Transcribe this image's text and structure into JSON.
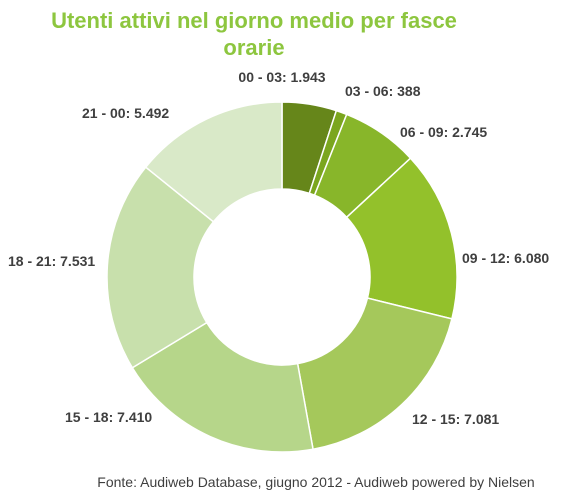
{
  "chart_data": {
    "type": "pie",
    "variant": "donut",
    "title_lines": [
      "Utenti attivi nel giorno medio  per fasce",
      "orarie"
    ],
    "categories": [
      "00 - 03",
      "03 - 06",
      "06 - 09",
      "09 - 12",
      "12 - 15",
      "15 - 18",
      "18 - 21",
      "21 - 00"
    ],
    "values": [
      1943,
      388,
      2745,
      6080,
      7081,
      7410,
      7531,
      5492
    ],
    "labels": [
      "00 - 03: 1.943",
      "03 - 06: 388",
      "06 - 09: 2.745",
      "09 - 12: 6.080",
      "12 - 15: 7.081",
      "15 - 18: 7.410",
      "18 - 21: 7.531",
      "21 - 00: 5.492"
    ],
    "colors": [
      "#66861a",
      "#7ba61e",
      "#88b62a",
      "#93c12b",
      "#a5c85b",
      "#b6d68a",
      "#c8e0ac",
      "#d9e9c8"
    ],
    "legend": "none",
    "source": "Fonte: Audiweb Database, giugno 2012 - Audiweb powered by Nielsen"
  }
}
